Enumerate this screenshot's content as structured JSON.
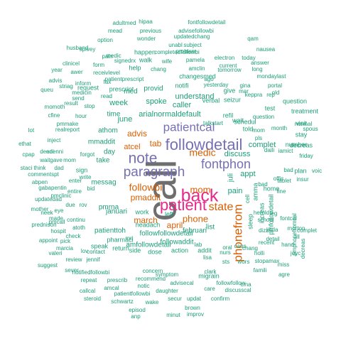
{
  "palette": {
    "gray": "#6e6e6e",
    "green": "#1b9e77",
    "orange": "#d95f02",
    "purple": "#7570b3",
    "magenta": "#e7298a"
  },
  "words": [
    {
      "text": "call",
      "color": "#6e6e6e"
    },
    {
      "text": "patient",
      "color": "#e7298a"
    },
    {
      "text": "back",
      "color": "#e7298a"
    },
    {
      "text": "followdetail",
      "color": "#7570b3"
    },
    {
      "text": "note",
      "color": "#7570b3"
    },
    {
      "text": "paragraph",
      "color": "#7570b3"
    },
    {
      "text": "patientcal",
      "color": "#7570b3"
    },
    {
      "text": "fontphon",
      "color": "#7570b3"
    },
    {
      "text": "state",
      "color": "#d95f02"
    },
    {
      "text": "phonefrom",
      "color": "#d95f02"
    },
    {
      "text": "mom",
      "color": "#d95f02"
    },
    {
      "text": "medic",
      "color": "#d95f02"
    },
    {
      "text": "followbi",
      "color": "#d95f02"
    },
    {
      "text": "pmaddit",
      "color": "#d95f02"
    },
    {
      "text": "phone",
      "color": "#d95f02"
    },
    {
      "text": "april",
      "color": "#d95f02"
    },
    {
      "text": "march",
      "color": "#d95f02"
    },
    {
      "text": "advis",
      "color": "#d95f02"
    },
    {
      "text": "atcel",
      "color": "#d95f02"
    },
    {
      "text": "tab",
      "color": "#d95f02"
    },
    {
      "text": "arialnormaldefault",
      "color": "#1b9e77"
    },
    {
      "text": "caller",
      "color": "#1b9e77"
    },
    {
      "text": "understand",
      "color": "#1b9e77"
    },
    {
      "text": "discuss",
      "color": "#1b9e77"
    },
    {
      "text": "complet",
      "color": "#1b9e77"
    },
    {
      "text": "pain",
      "color": "#1b9e77"
    },
    {
      "text": "appt",
      "color": "#1b9e77"
    },
    {
      "text": "juli",
      "color": "#1b9e77"
    },
    {
      "text": "mmaddit",
      "color": "#1b9e77"
    },
    {
      "text": "messag",
      "color": "#1b9e77"
    },
    {
      "text": "take",
      "color": "#1b9e77"
    },
    {
      "text": "day",
      "color": "#1b9e77"
    },
    {
      "text": "week",
      "color": "#1b9e77"
    },
    {
      "text": "spoke",
      "color": "#1b9e77"
    },
    {
      "text": "june",
      "color": "#1b9e77"
    },
    {
      "text": "time",
      "color": "#1b9e77"
    },
    {
      "text": "athom",
      "color": "#1b9e77"
    },
    {
      "text": "januari",
      "color": "#1b9e77"
    },
    {
      "text": "februari",
      "color": "#1b9e77"
    },
    {
      "text": "list",
      "color": "#1b9e77"
    },
    {
      "text": "patienttoh",
      "color": "#1b9e77"
    },
    {
      "text": "pmrna",
      "color": "#1b9e77"
    },
    {
      "text": "sign",
      "color": "#1b9e77"
    },
    {
      "text": "followfollowdetail",
      "color": "#1b9e77"
    },
    {
      "text": "amfollowdetail",
      "color": "#1b9e77"
    },
    {
      "text": "followaddit",
      "color": "#1b9e77"
    },
    {
      "text": "action",
      "color": "#1b9e77"
    },
    {
      "text": "addit",
      "color": "#1b9e77"
    },
    {
      "text": "provid",
      "color": "#1b9e77"
    },
    {
      "text": "med",
      "color": "#1b9e77"
    },
    {
      "text": "verbal",
      "color": "#1b9e77"
    },
    {
      "text": "seizur",
      "color": "#1b9e77"
    },
    {
      "text": "give",
      "color": "#1b9e77"
    },
    {
      "text": "request",
      "color": "#1b9e77"
    },
    {
      "text": "prescript",
      "color": "#1b9e77"
    },
    {
      "text": "changesmed",
      "color": "#1b9e77"
    },
    {
      "text": "notifi",
      "color": "#1b9e77"
    },
    {
      "text": "cell",
      "color": "#1b9e77"
    },
    {
      "text": "sleep",
      "color": "#1b9e77"
    },
    {
      "text": "amma",
      "color": "#1b9e77"
    },
    {
      "text": "increas",
      "color": "#1b9e77"
    },
    {
      "text": "pmfollowdetail",
      "color": "#1b9e77"
    },
    {
      "text": "schedul",
      "color": "#1b9e77"
    },
    {
      "text": "dose",
      "color": "#1b9e77"
    },
    {
      "text": "side",
      "color": "#1b9e77"
    },
    {
      "text": "headach",
      "color": "#1b9e77"
    },
    {
      "text": "left",
      "color": "#1b9e77"
    },
    {
      "text": "work",
      "color": "#1b9e77"
    },
    {
      "text": "help",
      "color": "#1b9e77"
    },
    {
      "text": "told",
      "color": "#1b9e77"
    },
    {
      "text": "home",
      "color": "#1b9e77"
    },
    {
      "text": "lab",
      "color": "#1b9e77"
    },
    {
      "text": "leg",
      "color": "#1b9e77"
    },
    {
      "text": "mri",
      "color": "#1b9e77"
    },
    {
      "text": "walk",
      "color": "#1b9e77"
    },
    {
      "text": "happen",
      "color": "#1b9e77"
    },
    {
      "text": "wait",
      "color": "#1b9e77"
    },
    {
      "text": "sever",
      "color": "#1b9e77"
    },
    {
      "text": "test",
      "color": "#1b9e77"
    },
    {
      "text": "current",
      "color": "#1b9e77"
    },
    {
      "text": "refil",
      "color": "#1b9e77"
    },
    {
      "text": "question",
      "color": "#1b9e77"
    },
    {
      "text": "treatment",
      "color": "#1b9e77"
    },
    {
      "text": "stay",
      "color": "#1b9e77"
    },
    {
      "text": "visit",
      "color": "#1b9e77"
    },
    {
      "text": "number",
      "color": "#1b9e77"
    },
    {
      "text": "decreas",
      "color": "#1b9e77"
    },
    {
      "text": "friday",
      "color": "#1b9e77"
    },
    {
      "text": "plan",
      "color": "#1b9e77"
    },
    {
      "text": "voic",
      "color": "#1b9e77"
    },
    {
      "text": "offic",
      "color": "#1b9e77"
    },
    {
      "text": "insur",
      "color": "#1b9e77"
    },
    {
      "text": "bad",
      "color": "#1b9e77"
    },
    {
      "text": "tablet",
      "color": "#1b9e77"
    },
    {
      "text": "fine",
      "color": "#1b9e77"
    },
    {
      "text": "school",
      "color": "#1b9e77"
    },
    {
      "text": "recent",
      "color": "#1b9e77"
    },
    {
      "text": "famili",
      "color": "#1b9e77"
    },
    {
      "text": "agre",
      "color": "#1b9e77"
    },
    {
      "text": "cma",
      "color": "#1b9e77"
    },
    {
      "text": "miss",
      "color": "#1b9e77"
    },
    {
      "text": "joyc",
      "color": "#1b9e77"
    },
    {
      "text": "fill",
      "color": "#1b9e77"
    },
    {
      "text": "dizzi",
      "color": "#1b9e77"
    },
    {
      "text": "holli",
      "color": "#1b9e77"
    },
    {
      "text": "chang",
      "color": "#1b9e77"
    },
    {
      "text": "caus",
      "color": "#1b9e77"
    },
    {
      "text": "migrain",
      "color": "#1b9e77"
    },
    {
      "text": "pharmaci",
      "color": "#1b9e77"
    },
    {
      "text": "speak",
      "color": "#1b9e77"
    },
    {
      "text": "return",
      "color": "#1b9e77"
    },
    {
      "text": "contact",
      "color": "#1b9e77"
    },
    {
      "text": "review",
      "color": "#1b9e77"
    },
    {
      "text": "jennif",
      "color": "#1b9e77"
    },
    {
      "text": "notifiedfollowbi",
      "color": "#1b9e77"
    },
    {
      "text": "repeat",
      "color": "#1b9e77"
    },
    {
      "text": "prescrib",
      "color": "#1b9e77"
    },
    {
      "text": "recommend",
      "color": "#1b9e77"
    },
    {
      "text": "callcal",
      "color": "#1b9e77"
    },
    {
      "text": "amcal",
      "color": "#1b9e77"
    },
    {
      "text": "notic",
      "color": "#1b9e77"
    },
    {
      "text": "daughter",
      "color": "#1b9e77"
    },
    {
      "text": "steroid",
      "color": "#1b9e77"
    },
    {
      "text": "patientfollowbi",
      "color": "#1b9e77"
    },
    {
      "text": "schwartz",
      "color": "#1b9e77"
    },
    {
      "text": "wake",
      "color": "#1b9e77"
    },
    {
      "text": "secur",
      "color": "#1b9e77"
    },
    {
      "text": "updat",
      "color": "#1b9e77"
    },
    {
      "text": "confirm",
      "color": "#1b9e77"
    },
    {
      "text": "episod",
      "color": "#1b9e77"
    },
    {
      "text": "brown",
      "color": "#1b9e77"
    },
    {
      "text": "anp",
      "color": "#1b9e77"
    },
    {
      "text": "minut",
      "color": "#1b9e77"
    },
    {
      "text": "improv",
      "color": "#1b9e77"
    },
    {
      "text": "advisecal",
      "color": "#1b9e77"
    },
    {
      "text": "care",
      "color": "#1b9e77"
    },
    {
      "text": "discusscal",
      "color": "#1b9e77"
    },
    {
      "text": "followfollow",
      "color": "#1b9e77"
    },
    {
      "text": "clark",
      "color": "#1b9e77"
    },
    {
      "text": "symptom",
      "color": "#1b9e77"
    },
    {
      "text": "concern",
      "color": "#1b9e77"
    },
    {
      "text": "pmphonefromcal",
      "color": "#1b9e77"
    },
    {
      "text": "decreas",
      "color": "#1b9e77"
    },
    {
      "text": "mother",
      "color": "#1b9e77"
    },
    {
      "text": "eye",
      "color": "#1b9e77"
    },
    {
      "text": "prednison",
      "color": "#1b9e77"
    },
    {
      "text": "appoint",
      "color": "#1b9e77"
    },
    {
      "text": "pick",
      "color": "#1b9e77"
    },
    {
      "text": "gabapentin",
      "color": "#1b9e77"
    },
    {
      "text": "entire",
      "color": "#1b9e77"
    },
    {
      "text": "updatedad",
      "color": "#1b9e77"
    },
    {
      "text": "pmclinic",
      "color": "#1b9e77"
    },
    {
      "text": "commentspt",
      "color": "#1b9e77"
    },
    {
      "text": "dad",
      "color": "#1b9e77"
    },
    {
      "text": "waitgave",
      "color": "#1b9e77"
    },
    {
      "text": "denni",
      "color": "#1b9e77"
    },
    {
      "text": "mom",
      "color": "#1b9e77"
    },
    {
      "text": "inject",
      "color": "#1b9e77"
    },
    {
      "text": "bid",
      "color": "#1b9e77"
    },
    {
      "text": "enter",
      "color": "#1b9e77"
    },
    {
      "text": "due",
      "color": "#1b9e77"
    },
    {
      "text": "rov",
      "color": "#1b9e77"
    },
    {
      "text": "continu",
      "color": "#1b9e77"
    },
    {
      "text": "hospit",
      "color": "#1b9e77"
    },
    {
      "text": "check",
      "color": "#1b9e77"
    },
    {
      "text": "suggest",
      "color": "#1b9e77"
    },
    {
      "text": "marcia",
      "color": "#1b9e77"
    },
    {
      "text": "lov",
      "color": "#1b9e77"
    },
    {
      "text": "valeri",
      "color": "#1b9e77"
    },
    {
      "text": "abpen",
      "color": "#1b9e77"
    },
    {
      "text": "write",
      "color": "#1b9e77"
    },
    {
      "text": "forgot",
      "color": "#1b9e77"
    },
    {
      "text": "edenni",
      "color": "#1b9e77"
    },
    {
      "text": "pmcall",
      "color": "#1b9e77"
    },
    {
      "text": "atoth",
      "color": "#1b9e77"
    },
    {
      "text": "made",
      "color": "#1b9e77"
    },
    {
      "text": "neek",
      "color": "#1b9e77"
    },
    {
      "text": "cpap",
      "color": "#1b9e77"
    },
    {
      "text": "staci",
      "color": "#1b9e77"
    },
    {
      "text": "think",
      "color": "#1b9e77"
    },
    {
      "text": "ethat",
      "color": "#1b9e77"
    },
    {
      "text": "lot",
      "color": "#1b9e77"
    },
    {
      "text": "result",
      "color": "#1b9e77"
    },
    {
      "text": "cfine",
      "color": "#1b9e77"
    },
    {
      "text": "pmmake",
      "color": "#1b9e77"
    },
    {
      "text": "realreport",
      "color": "#1b9e77"
    },
    {
      "text": "momoth",
      "color": "#1b9e77"
    },
    {
      "text": "queu",
      "color": "#1b9e77"
    },
    {
      "text": "advis",
      "color": "#1b9e77"
    },
    {
      "text": "striag",
      "color": "#1b9e77"
    },
    {
      "text": "year",
      "color": "#1b9e77"
    },
    {
      "text": "awer",
      "color": "#1b9e77"
    },
    {
      "text": "clinicel",
      "color": "#1b9e77"
    },
    {
      "text": "receivlevel",
      "color": "#1b9e77"
    },
    {
      "text": "patientprescript",
      "color": "#1b9e77"
    },
    {
      "text": "husband",
      "color": "#1b9e77"
    },
    {
      "text": "spivey",
      "color": "#1b9e77"
    },
    {
      "text": "option",
      "color": "#1b9e77"
    },
    {
      "text": "form",
      "color": "#1b9e77"
    },
    {
      "text": "fax",
      "color": "#1b9e77"
    },
    {
      "text": "pain",
      "color": "#1b9e77"
    },
    {
      "text": "medic",
      "color": "#1b9e77"
    },
    {
      "text": "signedrx",
      "color": "#1b9e77"
    },
    {
      "text": "adultmed",
      "color": "#1b9e77"
    },
    {
      "text": "mead",
      "color": "#1b9e77"
    },
    {
      "text": "hipaa",
      "color": "#1b9e77"
    },
    {
      "text": "previous",
      "color": "#1b9e77"
    },
    {
      "text": "wonder",
      "color": "#1b9e77"
    },
    {
      "text": "updatedchang",
      "color": "#1b9e77"
    },
    {
      "text": "fontfollowdetail",
      "color": "#1b9e77"
    },
    {
      "text": "advisefollowbi",
      "color": "#1b9e77"
    },
    {
      "text": "unabl",
      "color": "#1b9e77"
    },
    {
      "text": "subject",
      "color": "#1b9e77"
    },
    {
      "text": "problem",
      "color": "#1b9e77"
    },
    {
      "text": "completedfollowbi",
      "color": "#1b9e77"
    },
    {
      "text": "qam",
      "color": "#1b9e77"
    },
    {
      "text": "nausea",
      "color": "#1b9e77"
    },
    {
      "text": "electron",
      "color": "#1b9e77"
    },
    {
      "text": "pamela",
      "color": "#1b9e77"
    },
    {
      "text": "amclin",
      "color": "#1b9e77"
    },
    {
      "text": "tomorrow",
      "color": "#1b9e77"
    },
    {
      "text": "long",
      "color": "#1b9e77"
    },
    {
      "text": "today",
      "color": "#1b9e77"
    },
    {
      "text": "answer",
      "color": "#1b9e77"
    },
    {
      "text": "mondaylast",
      "color": "#1b9e77"
    },
    {
      "text": "wife",
      "color": "#1b9e77"
    },
    {
      "text": "chang",
      "color": "#1b9e77"
    },
    {
      "text": "ago",
      "color": "#1b9e77"
    },
    {
      "text": "yesterday",
      "color": "#1b9e77"
    },
    {
      "text": "gina",
      "color": "#1b9e77"
    },
    {
      "text": "portal",
      "color": "#1b9e77"
    },
    {
      "text": "old",
      "color": "#1b9e77"
    },
    {
      "text": "keppra",
      "color": "#1b9e77"
    },
    {
      "text": "mar",
      "color": "#1b9e77"
    },
    {
      "text": "rep",
      "color": "#1b9e77"
    },
    {
      "text": "question",
      "color": "#1b9e77"
    },
    {
      "text": "talkstart",
      "color": "#1b9e77"
    },
    {
      "text": "normal",
      "color": "#1b9e77"
    },
    {
      "text": "spous",
      "color": "#1b9e77"
    },
    {
      "text": "pls",
      "color": "#1b9e77"
    },
    {
      "text": "month",
      "color": "#1b9e77"
    },
    {
      "text": "daili",
      "color": "#1b9e77"
    },
    {
      "text": "mom",
      "color": "#1b9e77"
    },
    {
      "text": "iamict",
      "color": "#1b9e77"
    },
    {
      "text": "stop",
      "color": "#1b9e77"
    },
    {
      "text": "send",
      "color": "#1b9e77"
    },
    {
      "text": "inform",
      "color": "#1b9e77"
    },
    {
      "text": "hour",
      "color": "#1b9e77"
    },
    {
      "text": "read",
      "color": "#1b9e77"
    },
    {
      "text": "medicin",
      "color": "#1b9e77"
    },
    {
      "text": "bad",
      "color": "#1b9e77"
    },
    {
      "text": "herold",
      "color": "#1b9e77"
    },
    {
      "text": "iinda",
      "color": "#1b9e77"
    },
    {
      "text": "morton",
      "color": "#1b9e77"
    },
    {
      "text": "hand",
      "color": "#1b9e77"
    },
    {
      "text": "detail",
      "color": "#1b9e77"
    },
    {
      "text": "complet",
      "color": "#1b9e77"
    },
    {
      "text": "fontcal",
      "color": "#1b9e77"
    },
    {
      "text": "oral",
      "color": "#1b9e77"
    },
    {
      "text": "sts",
      "color": "#1b9e77"
    },
    {
      "text": "wors",
      "color": "#1b9e77"
    },
    {
      "text": "lisa",
      "color": "#1b9e77"
    },
    {
      "text": "nurs",
      "color": "#1b9e77"
    },
    {
      "text": "stopamax",
      "color": "#1b9e77"
    }
  ]
}
